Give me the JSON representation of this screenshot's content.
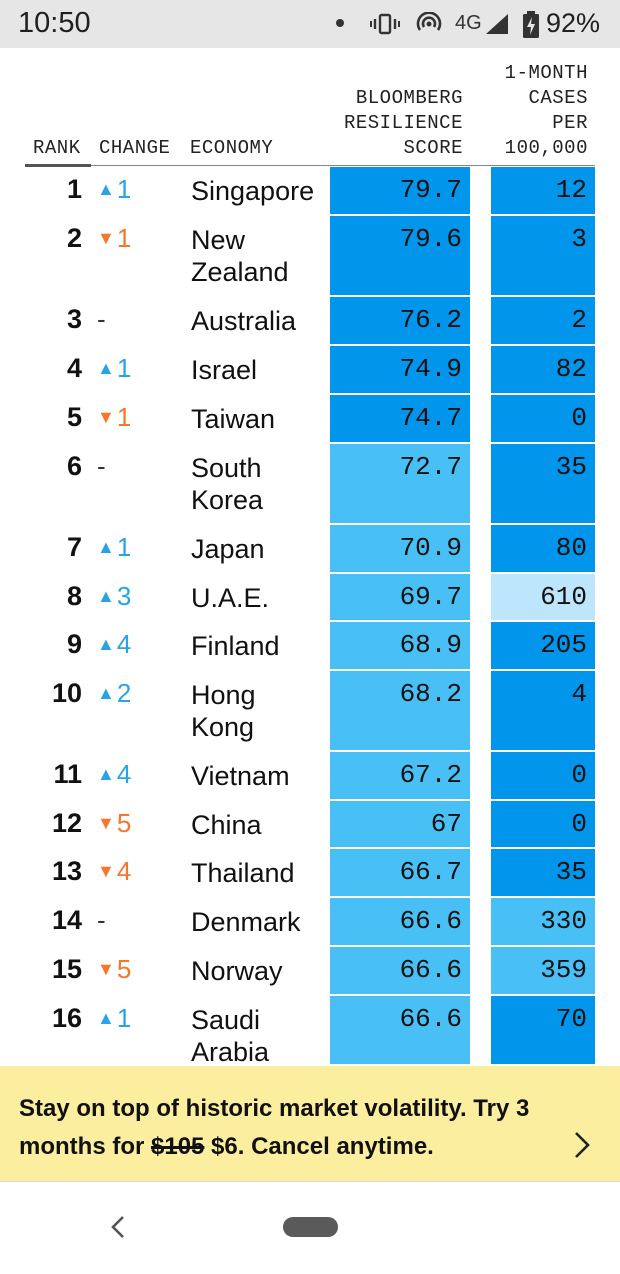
{
  "status": {
    "time": "10:50",
    "network": "4G",
    "battery": "92%"
  },
  "header": {
    "rank": "RANK",
    "change": "CHANGE",
    "economy": "ECONOMY",
    "score": [
      "BLOOMBERG",
      "RESILIENCE",
      "SCORE"
    ],
    "cases": [
      "1-MONTH",
      "CASES",
      "PER",
      "100,000"
    ]
  },
  "colors": {
    "dark_blue": "#0195eb",
    "mid_blue": "#48c0f5",
    "light_blue": "#bde6fd",
    "up": "#29a3e8",
    "down": "#f4772c"
  },
  "rows": [
    {
      "rank": "1",
      "dir": "up",
      "change": "1",
      "economy": "Singapore",
      "score": "79.7",
      "cases": "12",
      "score_tier": "dark",
      "cases_tier": "dark"
    },
    {
      "rank": "2",
      "dir": "down",
      "change": "1",
      "economy": "New Zealand",
      "score": "79.6",
      "cases": "3",
      "score_tier": "dark",
      "cases_tier": "dark"
    },
    {
      "rank": "3",
      "dir": "flat",
      "change": "-",
      "economy": "Australia",
      "score": "76.2",
      "cases": "2",
      "score_tier": "dark",
      "cases_tier": "dark"
    },
    {
      "rank": "4",
      "dir": "up",
      "change": "1",
      "economy": "Israel",
      "score": "74.9",
      "cases": "82",
      "score_tier": "dark",
      "cases_tier": "dark"
    },
    {
      "rank": "5",
      "dir": "down",
      "change": "1",
      "economy": "Taiwan",
      "score": "74.7",
      "cases": "0",
      "score_tier": "dark",
      "cases_tier": "dark"
    },
    {
      "rank": "6",
      "dir": "flat",
      "change": "-",
      "economy": "South Korea",
      "score": "72.7",
      "cases": "35",
      "score_tier": "mid",
      "cases_tier": "dark"
    },
    {
      "rank": "7",
      "dir": "up",
      "change": "1",
      "economy": "Japan",
      "score": "70.9",
      "cases": "80",
      "score_tier": "mid",
      "cases_tier": "dark"
    },
    {
      "rank": "8",
      "dir": "up",
      "change": "3",
      "economy": "U.A.E.",
      "score": "69.7",
      "cases": "610",
      "score_tier": "mid",
      "cases_tier": "light"
    },
    {
      "rank": "9",
      "dir": "up",
      "change": "4",
      "economy": "Finland",
      "score": "68.9",
      "cases": "205",
      "score_tier": "mid",
      "cases_tier": "dark"
    },
    {
      "rank": "10",
      "dir": "up",
      "change": "2",
      "economy": "Hong Kong",
      "score": "68.2",
      "cases": "4",
      "score_tier": "mid",
      "cases_tier": "dark"
    },
    {
      "rank": "11",
      "dir": "up",
      "change": "4",
      "economy": "Vietnam",
      "score": "67.2",
      "cases": "0",
      "score_tier": "mid",
      "cases_tier": "dark"
    },
    {
      "rank": "12",
      "dir": "down",
      "change": "5",
      "economy": "China",
      "score": "67",
      "cases": "0",
      "score_tier": "mid",
      "cases_tier": "dark"
    },
    {
      "rank": "13",
      "dir": "down",
      "change": "4",
      "economy": "Thailand",
      "score": "66.7",
      "cases": "35",
      "score_tier": "mid",
      "cases_tier": "dark"
    },
    {
      "rank": "14",
      "dir": "flat",
      "change": "-",
      "economy": "Denmark",
      "score": "66.6",
      "cases": "330",
      "score_tier": "mid",
      "cases_tier": "mid"
    },
    {
      "rank": "15",
      "dir": "down",
      "change": "5",
      "economy": "Norway",
      "score": "66.6",
      "cases": "359",
      "score_tier": "mid",
      "cases_tier": "mid"
    },
    {
      "rank": "16",
      "dir": "up",
      "change": "1",
      "economy": "Saudi Arabia",
      "score": "66.6",
      "cases": "70",
      "score_tier": "mid",
      "cases_tier": "dark"
    }
  ],
  "promo": {
    "text_before": "Stay on top of historic market volatility. Try 3 months for ",
    "old_price": "$105",
    "text_after": " $6. Cancel anytime."
  }
}
